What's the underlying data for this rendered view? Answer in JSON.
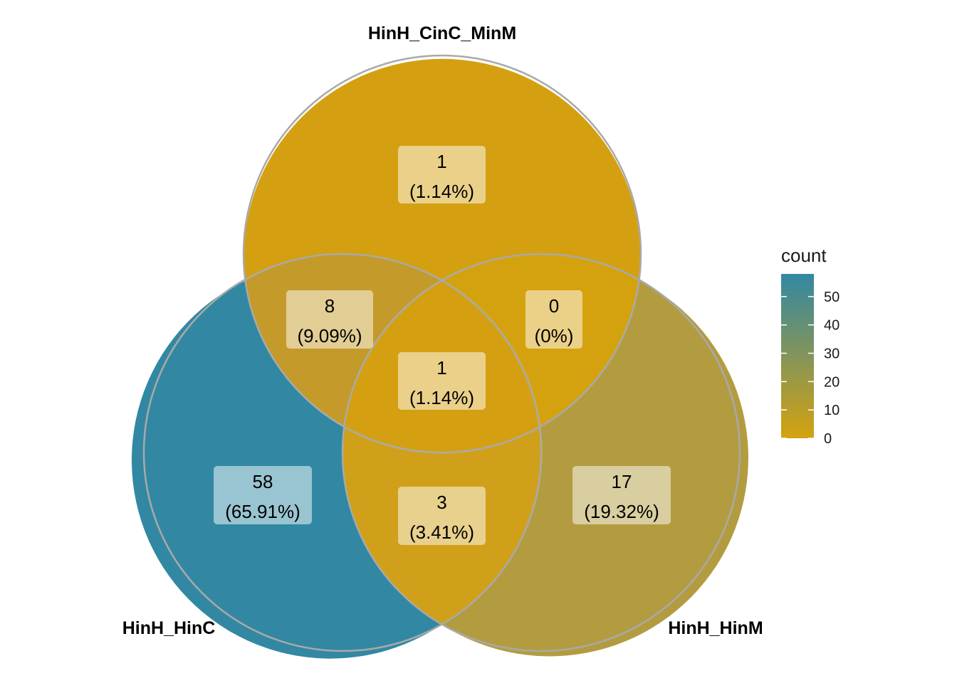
{
  "chart_data": {
    "type": "venn",
    "sets": [
      {
        "id": "A",
        "label": "HinH_HinC"
      },
      {
        "id": "B",
        "label": "HinH_CinC_MinM"
      },
      {
        "id": "C",
        "label": "HinH_HinM"
      }
    ],
    "regions": [
      {
        "id": "B_only",
        "sets": [
          "B"
        ],
        "count": "1",
        "percent": "(1.14%)",
        "color": "#D4A011"
      },
      {
        "id": "AB",
        "sets": [
          "A",
          "B"
        ],
        "count": "8",
        "percent": "(9.09%)",
        "color": "#C49A2A"
      },
      {
        "id": "BC",
        "sets": [
          "B",
          "C"
        ],
        "count": "0",
        "percent": "(0%)",
        "color": "#D5A20F"
      },
      {
        "id": "ABC",
        "sets": [
          "A",
          "B",
          "C"
        ],
        "count": "1",
        "percent": "(1.14%)",
        "color": "#D4A011"
      },
      {
        "id": "A_only",
        "sets": [
          "A"
        ],
        "count": "58",
        "percent": "(65.91%)",
        "color": "#3288A3"
      },
      {
        "id": "AC",
        "sets": [
          "A",
          "C"
        ],
        "count": "3",
        "percent": "(3.41%)",
        "color": "#D0A01A"
      },
      {
        "id": "C_only",
        "sets": [
          "C"
        ],
        "count": "17",
        "percent": "(19.32%)",
        "color": "#B39C40"
      }
    ],
    "legend": {
      "title": "count",
      "ticks": [
        "50",
        "40",
        "30",
        "20",
        "10",
        "0"
      ],
      "tick_values": [
        50,
        40,
        30,
        20,
        10,
        0
      ],
      "range": [
        0,
        58
      ],
      "low_color": "#D5A20F",
      "high_color": "#3288A3",
      "placement": "right"
    },
    "outline_color": "#A9A9A9"
  }
}
